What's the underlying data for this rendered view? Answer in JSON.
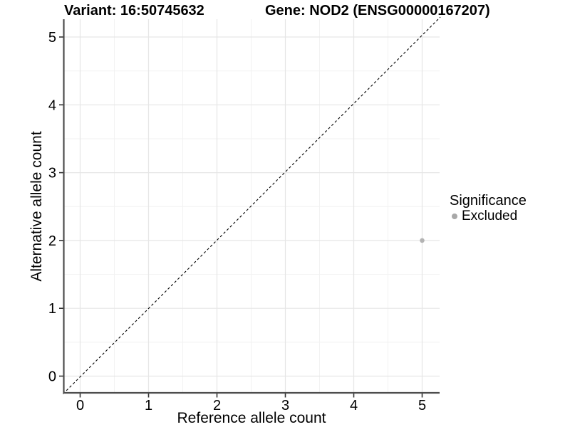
{
  "titles": {
    "variant": "Variant: 16:50745632",
    "gene": "Gene: NOD2 (ENSG00000167207)"
  },
  "chart_data": {
    "type": "scatter",
    "title": "Variant: 16:50745632   Gene: NOD2 (ENSG00000167207)",
    "xlabel": "Reference allele count",
    "ylabel": "Alternative allele count",
    "x_ticks": [
      "0",
      "1",
      "2",
      "3",
      "4",
      "5"
    ],
    "y_ticks": [
      "0",
      "1",
      "2",
      "3",
      "4",
      "5"
    ],
    "xlim": [
      -0.25,
      5.25
    ],
    "ylim": [
      -0.25,
      5.25
    ],
    "grid": "major gridlines at integers, minor gridlines at halves",
    "reference_line": {
      "type": "identity y=x",
      "style": "dashed",
      "color": "#000000",
      "from": [
        -0.25,
        -0.25
      ],
      "to": [
        5.25,
        5.25
      ]
    },
    "series": [
      {
        "name": "Excluded",
        "color": "#b3b3b3",
        "points": [
          {
            "x": 5,
            "y": 2
          }
        ]
      }
    ],
    "legend": {
      "title": "Significance",
      "position": "right",
      "items": [
        {
          "label": "Excluded",
          "color": "#a8a8a8"
        }
      ]
    }
  },
  "colors": {
    "background": "#ffffff",
    "grid_major": "#e6e6e6",
    "grid_minor": "#f2f2f2",
    "axis_line": "#4d4d4d",
    "text": "#000000",
    "point_excluded": "#b3b3b3"
  }
}
